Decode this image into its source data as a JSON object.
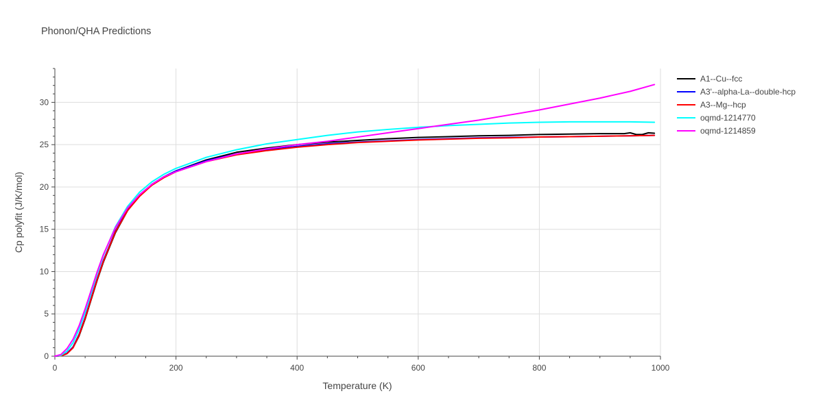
{
  "chart_data": {
    "type": "line",
    "title": "Phonon/QHA Predictions",
    "xlabel": "Temperature (K)",
    "ylabel": "Cp polyfit (J/K/mol)",
    "xlim": [
      0,
      1000
    ],
    "ylim": [
      0,
      34
    ],
    "xticks": [
      0,
      200,
      400,
      600,
      800,
      1000
    ],
    "yticks": [
      0,
      5,
      10,
      15,
      20,
      25,
      30
    ],
    "grid": true,
    "legend_position": "top-right",
    "series": [
      {
        "name": "A1--Cu--fcc",
        "color": "#000000",
        "x": [
          0,
          10,
          20,
          30,
          40,
          50,
          60,
          70,
          80,
          100,
          120,
          140,
          160,
          180,
          200,
          250,
          300,
          350,
          400,
          450,
          500,
          550,
          600,
          650,
          700,
          750,
          800,
          850,
          900,
          940,
          950,
          960,
          970,
          980,
          990
        ],
        "y": [
          0,
          0.05,
          0.3,
          1.0,
          2.4,
          4.4,
          6.7,
          9.0,
          11.1,
          14.6,
          17.2,
          19.0,
          20.3,
          21.2,
          21.9,
          23.2,
          24.1,
          24.6,
          25.0,
          25.3,
          25.5,
          25.7,
          25.85,
          25.95,
          26.05,
          26.1,
          26.2,
          26.25,
          26.3,
          26.3,
          26.4,
          26.2,
          26.2,
          26.4,
          26.35
        ]
      },
      {
        "name": "A3'--alpha-La--double-hcp",
        "color": "#0000ff",
        "x": [
          0,
          10,
          20,
          30,
          40,
          50,
          60,
          70,
          80,
          100,
          120,
          140,
          160,
          180,
          200,
          250,
          300,
          350,
          400,
          450,
          500,
          550,
          600,
          650,
          700,
          750,
          800,
          850,
          900,
          950,
          990
        ],
        "y": [
          0,
          0.05,
          0.35,
          1.1,
          2.6,
          4.6,
          6.9,
          9.2,
          11.3,
          14.8,
          17.3,
          19.0,
          20.3,
          21.2,
          21.9,
          23.1,
          23.9,
          24.4,
          24.8,
          25.1,
          25.3,
          25.45,
          25.6,
          25.7,
          25.8,
          25.85,
          25.9,
          25.95,
          26.0,
          26.05,
          26.1
        ]
      },
      {
        "name": "A3--Mg--hcp",
        "color": "#ff0000",
        "x": [
          0,
          10,
          20,
          30,
          40,
          50,
          60,
          70,
          80,
          100,
          120,
          140,
          160,
          180,
          200,
          250,
          300,
          350,
          400,
          450,
          500,
          550,
          600,
          650,
          700,
          750,
          800,
          850,
          900,
          950,
          990
        ],
        "y": [
          0,
          0.05,
          0.3,
          1.0,
          2.5,
          4.5,
          6.8,
          9.1,
          11.2,
          14.7,
          17.2,
          18.9,
          20.2,
          21.1,
          21.8,
          23.0,
          23.8,
          24.3,
          24.7,
          25.0,
          25.25,
          25.4,
          25.55,
          25.65,
          25.75,
          25.8,
          25.9,
          25.95,
          26.0,
          26.05,
          26.1
        ]
      },
      {
        "name": "oqmd-1214770",
        "color": "#00ffff",
        "x": [
          0,
          10,
          20,
          30,
          40,
          50,
          60,
          70,
          80,
          100,
          120,
          140,
          160,
          180,
          200,
          250,
          300,
          350,
          400,
          450,
          500,
          550,
          600,
          650,
          700,
          750,
          800,
          850,
          900,
          950,
          990
        ],
        "y": [
          0,
          0.1,
          0.6,
          1.6,
          3.2,
          5.2,
          7.5,
          9.8,
          11.9,
          15.3,
          17.7,
          19.4,
          20.6,
          21.5,
          22.2,
          23.5,
          24.4,
          25.1,
          25.6,
          26.1,
          26.5,
          26.8,
          27.05,
          27.25,
          27.4,
          27.55,
          27.65,
          27.7,
          27.7,
          27.7,
          27.65
        ]
      },
      {
        "name": "oqmd-1214859",
        "color": "#ff00ff",
        "x": [
          0,
          10,
          20,
          30,
          40,
          50,
          60,
          70,
          80,
          100,
          120,
          140,
          160,
          180,
          200,
          250,
          300,
          350,
          400,
          450,
          500,
          550,
          600,
          650,
          700,
          750,
          800,
          850,
          900,
          950,
          990
        ],
        "y": [
          0,
          0.2,
          0.9,
          2.0,
          3.6,
          5.6,
          7.8,
          10.0,
          12.0,
          15.2,
          17.5,
          19.1,
          20.3,
          21.2,
          21.8,
          23.0,
          23.9,
          24.5,
          25.0,
          25.4,
          25.9,
          26.4,
          26.9,
          27.4,
          27.9,
          28.5,
          29.1,
          29.8,
          30.5,
          31.3,
          32.1
        ]
      }
    ]
  }
}
